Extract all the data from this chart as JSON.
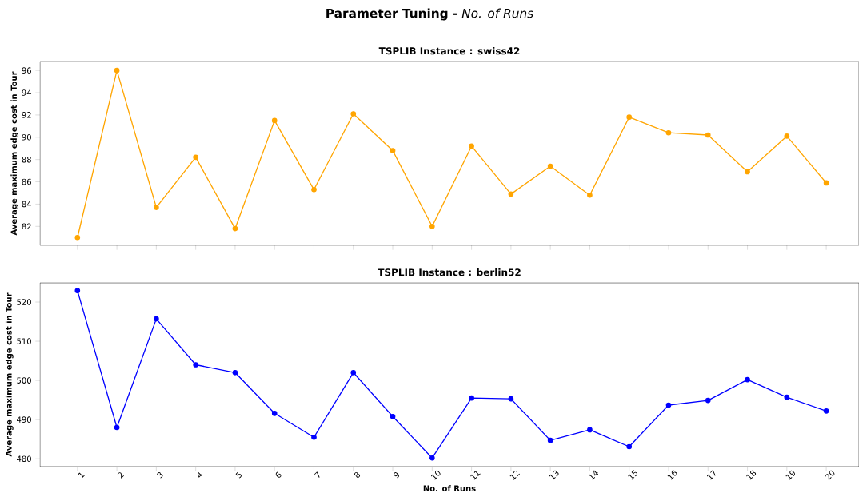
{
  "chart_data": [
    {
      "type": "other",
      "title": "**Parameter Tuning -** *No. of Runs*"
    },
    {
      "type": "line",
      "title": "TSPLIB Instance : swiss42",
      "ylabel": "Average maximum edge cost in Tour",
      "x": [
        1,
        2,
        3,
        4,
        5,
        6,
        7,
        8,
        9,
        10,
        11,
        12,
        13,
        14,
        15,
        16,
        17,
        18,
        19,
        20
      ],
      "values": [
        81.0,
        96.0,
        83.7,
        88.2,
        81.8,
        91.5,
        85.3,
        92.1,
        88.8,
        82.0,
        89.2,
        84.9,
        87.4,
        84.8,
        91.8,
        90.4,
        90.2,
        86.9,
        90.1,
        85.9
      ],
      "color": "#ffa500",
      "marker": "circle",
      "grid": false,
      "tick_labels": "y",
      "xlim": [
        0.05,
        20.83
      ],
      "ylim": [
        80.3,
        96.8
      ],
      "xticks": [
        1,
        2,
        3,
        4,
        5,
        6,
        7,
        8,
        9,
        10,
        11,
        12,
        13,
        14,
        15,
        16,
        17,
        18,
        19,
        20
      ],
      "yticks": [
        82,
        84,
        86,
        88,
        90,
        92,
        94,
        96
      ]
    },
    {
      "type": "line",
      "title": "TSPLIB Instance : berlin52",
      "xlabel": "No. of Runs",
      "ylabel": "Average maximum edge cost in Tour",
      "x": [
        1,
        2,
        3,
        4,
        5,
        6,
        7,
        8,
        9,
        10,
        11,
        12,
        13,
        14,
        15,
        16,
        17,
        18,
        19,
        20
      ],
      "values": [
        522.9,
        488.0,
        515.7,
        504.0,
        502.0,
        491.6,
        485.5,
        502.0,
        490.8,
        480.2,
        495.5,
        495.3,
        484.7,
        487.4,
        483.1,
        493.7,
        494.9,
        500.2,
        495.7,
        492.2
      ],
      "color": "#0000ff",
      "marker": "circle",
      "grid": false,
      "xlim": [
        0.05,
        20.83
      ],
      "ylim": [
        478.0,
        524.9
      ],
      "xticks": [
        1,
        2,
        3,
        4,
        5,
        6,
        7,
        8,
        9,
        10,
        11,
        12,
        13,
        14,
        15,
        16,
        17,
        18,
        19,
        20
      ],
      "yticks": [
        480,
        490,
        500,
        510,
        520
      ]
    }
  ]
}
